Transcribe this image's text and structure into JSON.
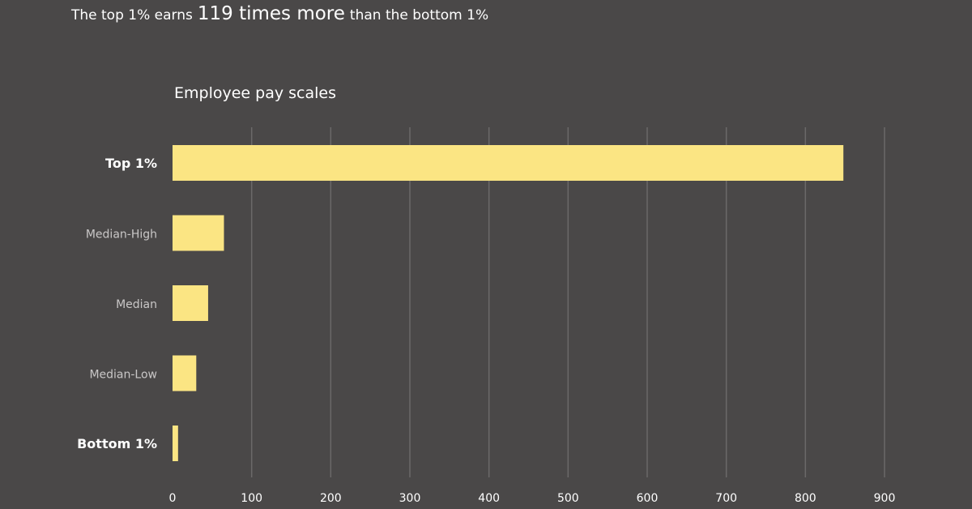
{
  "headline": {
    "prefix": "The top 1% earns",
    "emphasis": "119 times more",
    "suffix": "than the bottom 1%"
  },
  "chart_data": {
    "type": "bar",
    "orientation": "horizontal",
    "title": "Employee pay scales",
    "categories": [
      "Top 1%",
      "Median-High",
      "Median",
      "Median-Low",
      "Bottom 1%"
    ],
    "emphasized_categories": [
      "Top 1%",
      "Bottom 1%"
    ],
    "values": [
      848,
      65,
      45,
      30,
      7
    ],
    "xlim": [
      0,
      900
    ],
    "xticks": [
      0,
      100,
      200,
      300,
      400,
      500,
      600,
      700,
      800,
      900
    ],
    "xlabel": "",
    "ylabel": "",
    "grid": true,
    "legend": "none",
    "colors": {
      "bar": "#fbe583",
      "background": "#4a4848",
      "grid": "#6b6969",
      "emphasized_label": "#ffffff",
      "muted_label": "#c9c7c7"
    }
  }
}
